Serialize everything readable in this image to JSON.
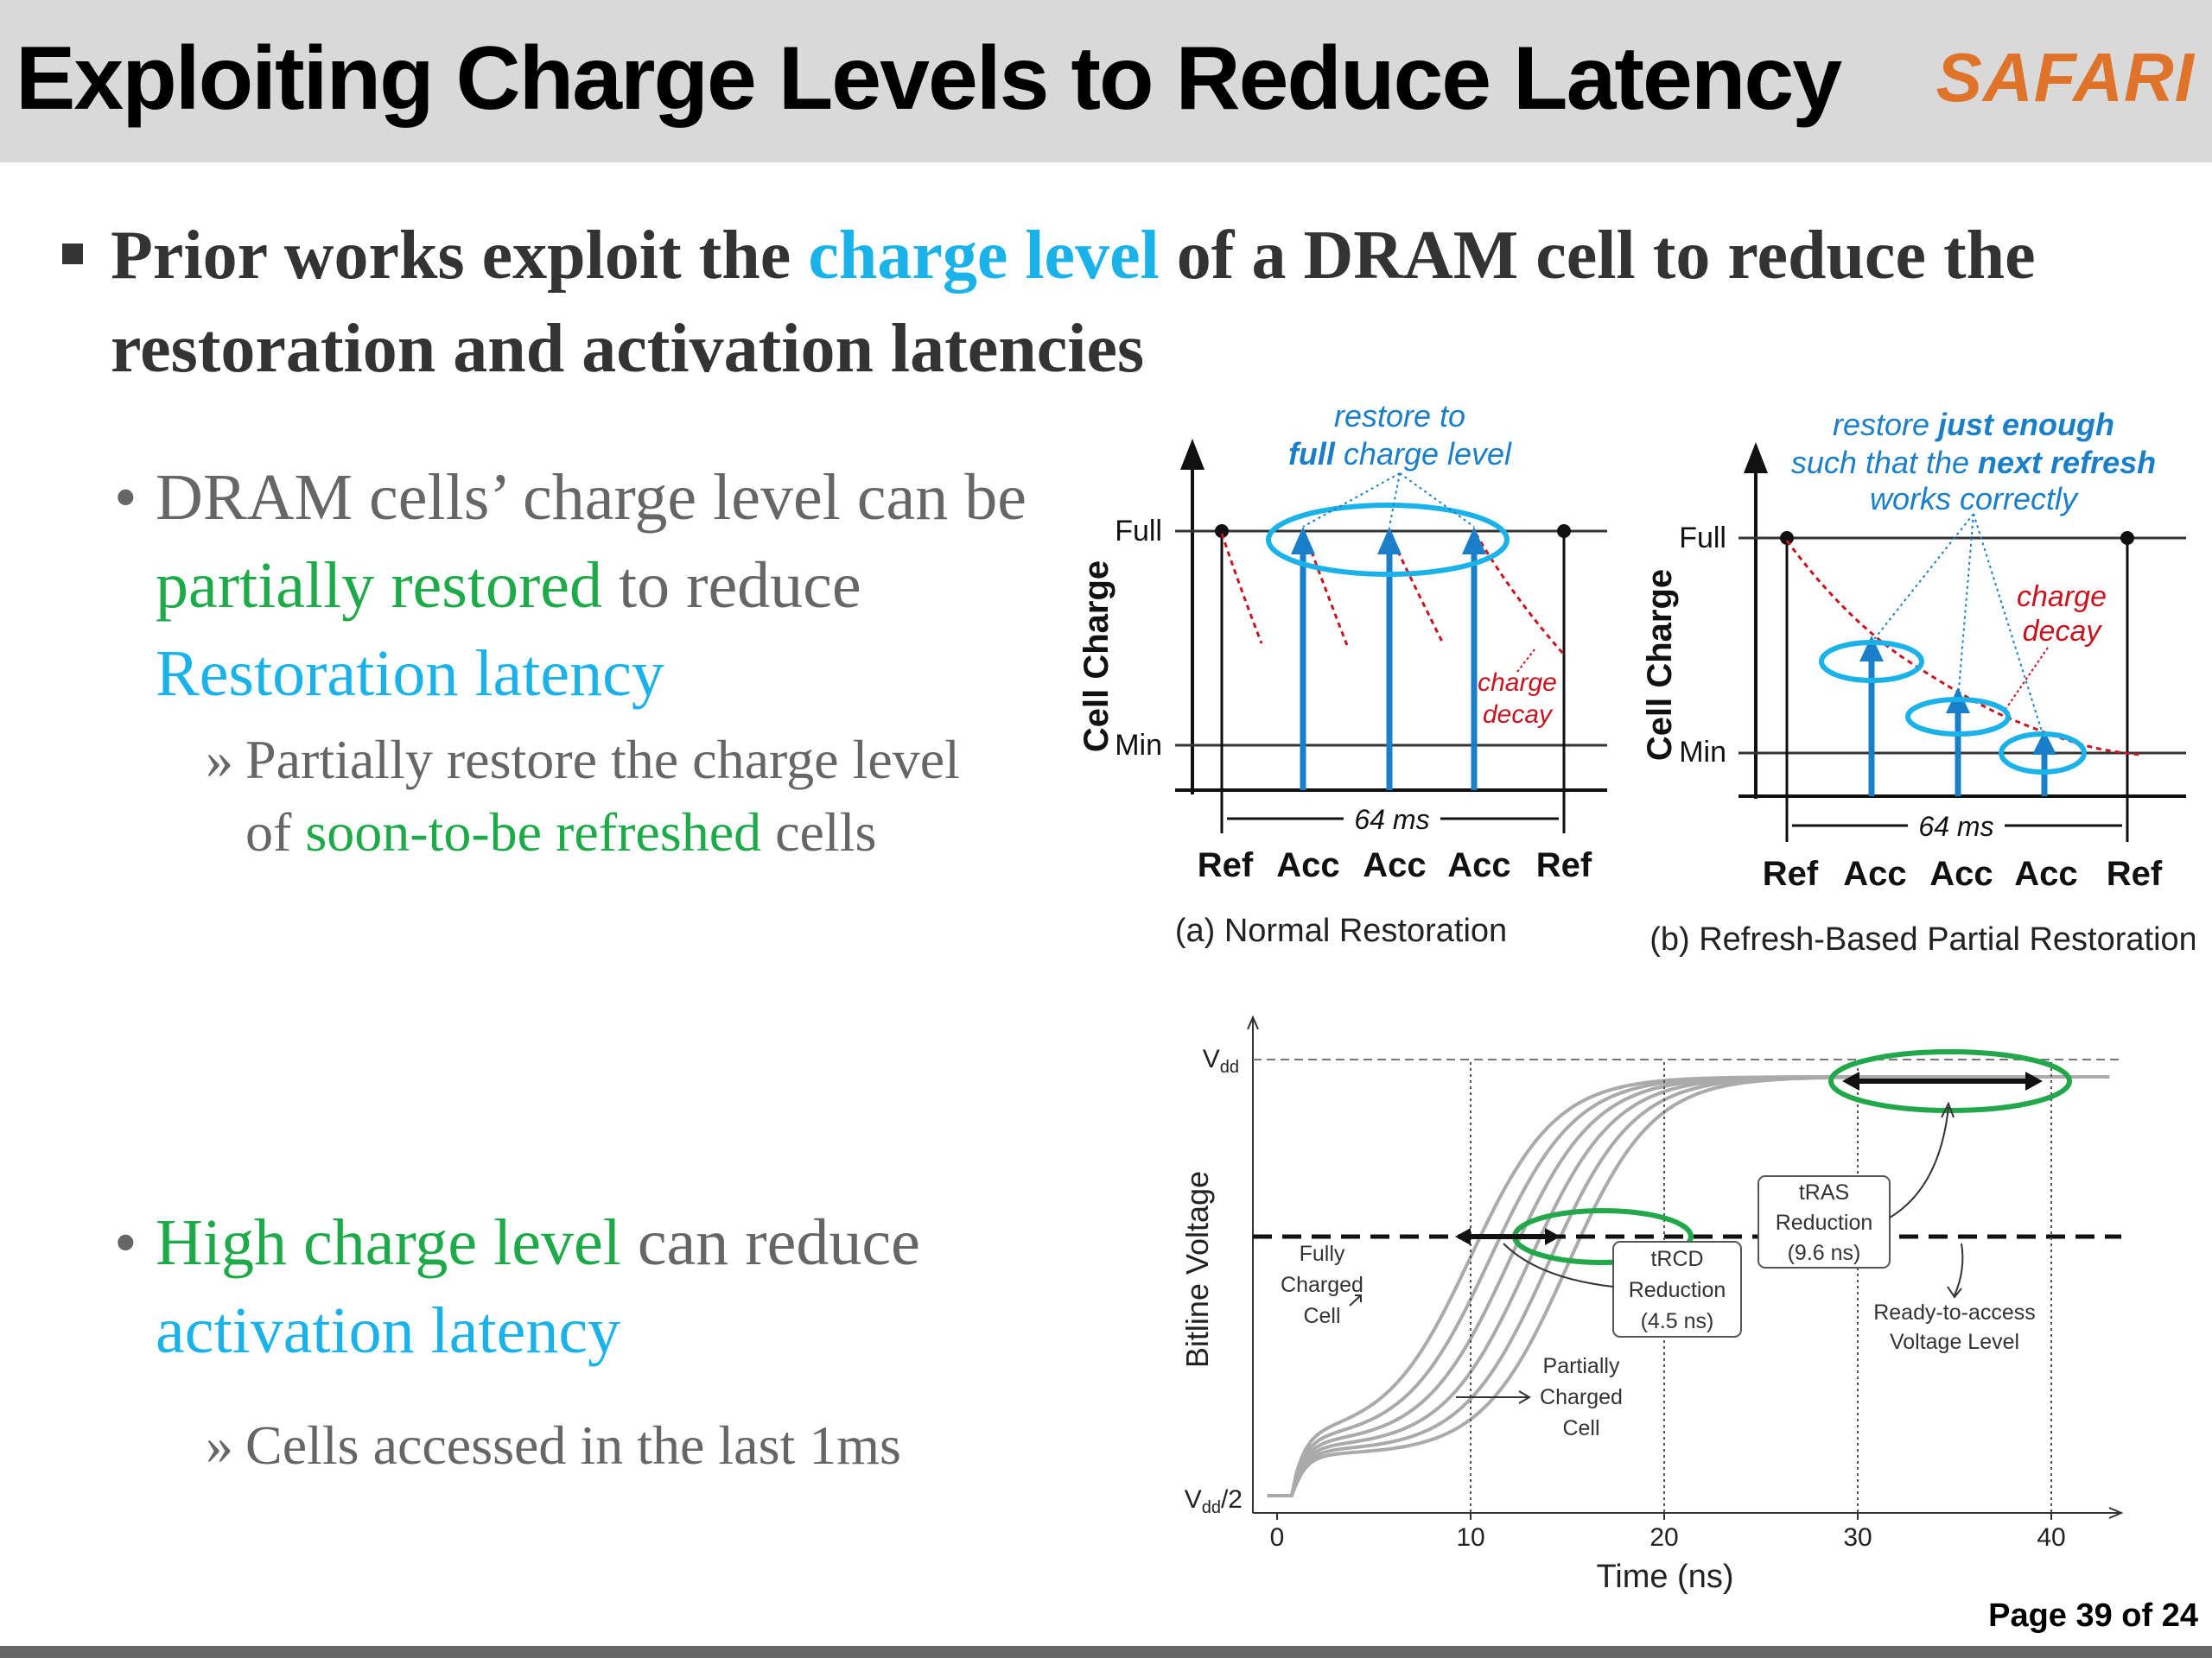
{
  "header": {
    "title": "Exploiting Charge Levels to Reduce Latency",
    "logo": "SAFARI"
  },
  "bullets": {
    "main": {
      "pre": "Prior works exploit the ",
      "highlight": "charge level",
      "post": " of a DRAM cell to reduce the restoration and activation latencies"
    },
    "sub1": {
      "a": "DRAM cells’ charge level can be ",
      "b": "partially restored",
      "c": " to reduce ",
      "d": "Restoration latency"
    },
    "sub1_detail": {
      "mark": "»",
      "a": "Partially restore the charge level of ",
      "b": "soon-to-be refreshed",
      "c": " cells"
    },
    "sub2": {
      "a": "High charge level",
      "b": " can reduce ",
      "c": "activation latency"
    },
    "sub2_detail": {
      "mark": "»",
      "a": "Cells accessed in the last 1ms"
    }
  },
  "figure_a": {
    "annotation_line1": "restore to",
    "annotation_bold": "full",
    "annotation_rest": " charge level",
    "ylabel": "Cell Charge",
    "full": "Full",
    "min": "Min",
    "decay1": "charge",
    "decay2": "decay",
    "period": "64 ms",
    "ticks": [
      "Ref",
      "Acc",
      "Acc",
      "Acc",
      "Ref"
    ],
    "caption": "(a) Normal Restoration"
  },
  "figure_b": {
    "annotation_1a": "restore ",
    "annotation_1b": "just enough",
    "annotation_2a": "such that the ",
    "annotation_2b": "next refresh",
    "annotation_3": "works correctly",
    "ylabel": "Cell Charge",
    "full": "Full",
    "min": "Min",
    "decay1": "charge",
    "decay2": "decay",
    "period": "64 ms",
    "ticks": [
      "Ref",
      "Acc",
      "Acc",
      "Acc",
      "Ref"
    ],
    "caption": "(b) Refresh-Based Partial Restoration"
  },
  "chart_data": {
    "type": "line",
    "xlabel": "Time (ns)",
    "ylabel": "Bitline Voltage",
    "x_ticks": [
      "0",
      "10",
      "20",
      "30",
      "40"
    ],
    "xlim": [
      0,
      44
    ],
    "y_labels": {
      "top_main": "V",
      "top_sub": "dd",
      "bottom_main": "V",
      "bottom_sub": "dd",
      "bottom_suffix": "/2"
    },
    "series_curve_midpoints_ns": [
      10,
      11,
      12,
      13,
      14,
      15
    ],
    "ready_to_access_level": "dashed horizontal line",
    "annotations": {
      "fully_charged": [
        "Fully",
        "Charged",
        "Cell"
      ],
      "partially_charged": [
        "Partially",
        "Charged",
        "Cell"
      ],
      "trcd": [
        "tRCD",
        "Reduction",
        "(4.5 ns)"
      ],
      "tras": [
        "tRAS",
        "Reduction",
        "(9.6 ns)"
      ],
      "ready": [
        "Ready-to-access",
        "Voltage Level"
      ]
    }
  },
  "footer": {
    "page": "Page 39 of 24"
  },
  "colors": {
    "accent_blue": "#1ab2e8",
    "accent_green": "#1faa4a",
    "arrow_blue": "#1a7ec8",
    "decay_red": "#c8141e",
    "logo_orange": "#e0732a"
  }
}
